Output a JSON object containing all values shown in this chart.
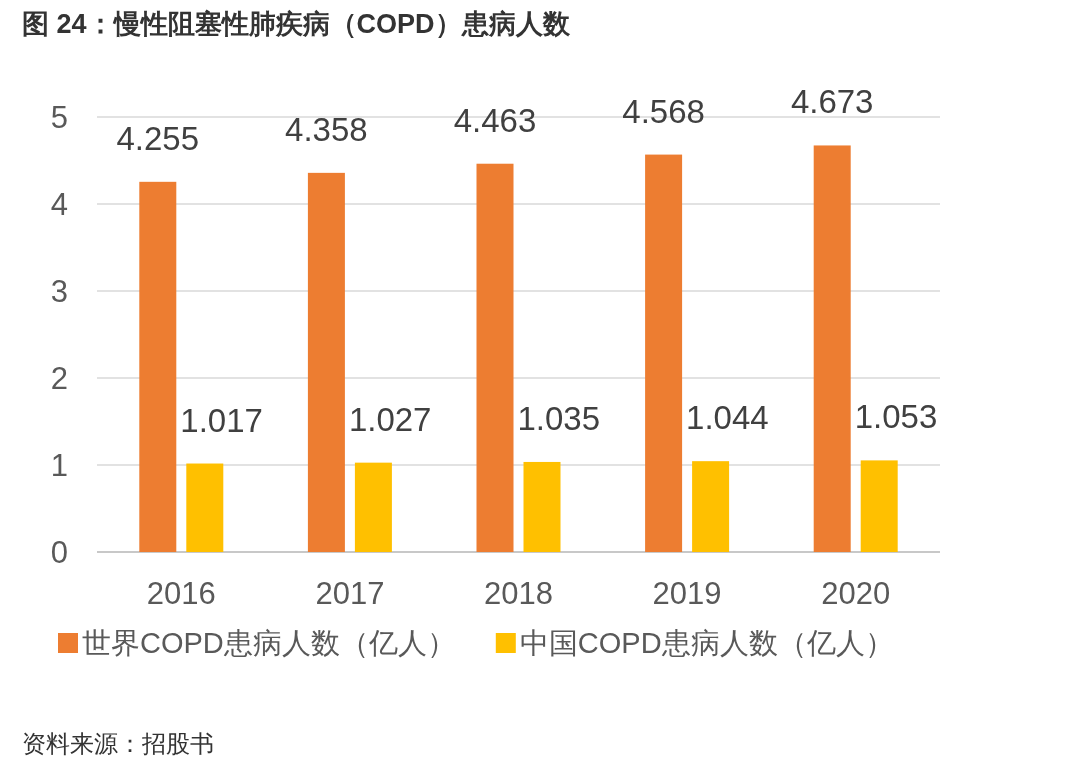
{
  "chart_data": {
    "type": "bar",
    "title": "图 24：慢性阻塞性肺疾病（COPD）患病人数",
    "categories": [
      "2016",
      "2017",
      "2018",
      "2019",
      "2020"
    ],
    "series": [
      {
        "name": "世界COPD患病人数（亿人）",
        "color": "#ed7d31",
        "values": [
          4.255,
          4.358,
          4.463,
          4.568,
          4.673
        ]
      },
      {
        "name": "中国COPD患病人数（亿人）",
        "color": "#ffc000",
        "values": [
          1.017,
          1.027,
          1.035,
          1.044,
          1.053
        ]
      }
    ],
    "ylim": [
      0,
      5
    ],
    "yticks": [
      0,
      1,
      2,
      3,
      4,
      5
    ],
    "grid": "y",
    "legend": "bottom",
    "data_labels": true,
    "annotations": [
      "资料来源：招股书"
    ]
  }
}
